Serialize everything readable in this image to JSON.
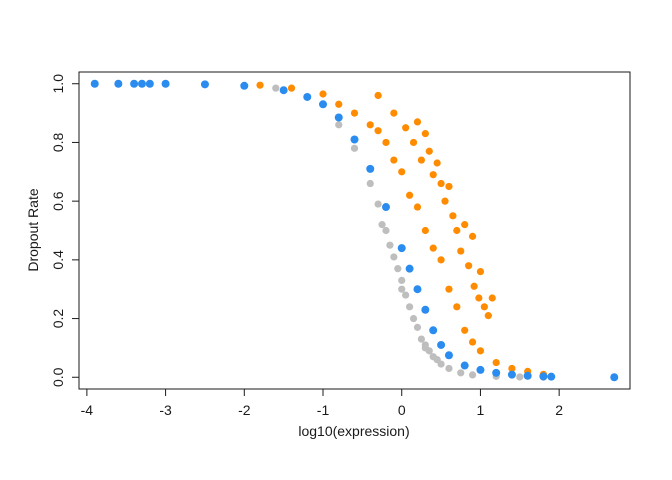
{
  "chart_data": {
    "type": "scatter",
    "title": "",
    "xlabel": "log10(expression)",
    "ylabel": "Dropout Rate",
    "xlim": [
      -4.1,
      2.9
    ],
    "ylim": [
      -0.04,
      1.04
    ],
    "xticks": [
      "-4",
      "-3",
      "-2",
      "-1",
      "0",
      "1",
      "2"
    ],
    "yticks": [
      "0.0",
      "0.2",
      "0.4",
      "0.6",
      "0.8",
      "1.0"
    ],
    "grid": false,
    "legend": "none",
    "series": [
      {
        "role": "points-below-fit",
        "color": "#bebebe",
        "points": [
          [
            -1.6,
            0.985
          ],
          [
            -1.2,
            0.955
          ],
          [
            -0.8,
            0.86
          ],
          [
            -0.6,
            0.78
          ],
          [
            -0.4,
            0.66
          ],
          [
            -0.3,
            0.59
          ],
          [
            -0.2,
            0.5
          ],
          [
            -0.1,
            0.41
          ],
          [
            0.0,
            0.33
          ],
          [
            0.1,
            0.24
          ],
          [
            0.2,
            0.17
          ],
          [
            0.3,
            0.11
          ],
          [
            0.4,
            0.07
          ],
          [
            0.5,
            0.045
          ],
          [
            0.6,
            0.03
          ],
          [
            0.75,
            0.015
          ],
          [
            0.9,
            0.008
          ],
          [
            1.2,
            0.003
          ],
          [
            1.5,
            0.001
          ],
          [
            1.8,
            0.0
          ],
          [
            -0.25,
            0.52
          ],
          [
            0.05,
            0.28
          ],
          [
            0.35,
            0.09
          ],
          [
            0.15,
            0.2
          ],
          [
            -0.05,
            0.37
          ],
          [
            0.45,
            0.06
          ],
          [
            0.25,
            0.13
          ],
          [
            -0.15,
            0.45
          ],
          [
            0.0,
            0.3
          ],
          [
            0.3,
            0.1
          ]
        ]
      },
      {
        "role": "points-above-fit",
        "color": "#ff8c00",
        "points": [
          [
            -1.8,
            0.995
          ],
          [
            -1.4,
            0.985
          ],
          [
            -1.0,
            0.965
          ],
          [
            -0.8,
            0.93
          ],
          [
            -0.6,
            0.9
          ],
          [
            -0.4,
            0.86
          ],
          [
            -0.3,
            0.84
          ],
          [
            -0.2,
            0.8
          ],
          [
            -0.1,
            0.74
          ],
          [
            0.0,
            0.7
          ],
          [
            0.1,
            0.62
          ],
          [
            0.2,
            0.58
          ],
          [
            0.3,
            0.5
          ],
          [
            0.4,
            0.44
          ],
          [
            0.5,
            0.4
          ],
          [
            0.6,
            0.3
          ],
          [
            0.7,
            0.24
          ],
          [
            0.8,
            0.16
          ],
          [
            0.9,
            0.12
          ],
          [
            1.0,
            0.09
          ],
          [
            1.2,
            0.05
          ],
          [
            1.4,
            0.03
          ],
          [
            1.6,
            0.02
          ],
          [
            1.8,
            0.01
          ],
          [
            -0.3,
            0.96
          ],
          [
            -0.1,
            0.9
          ],
          [
            0.2,
            0.87
          ],
          [
            0.3,
            0.83
          ],
          [
            0.35,
            0.77
          ],
          [
            0.45,
            0.73
          ],
          [
            0.5,
            0.66
          ],
          [
            0.55,
            0.6
          ],
          [
            0.65,
            0.55
          ],
          [
            0.7,
            0.5
          ],
          [
            0.75,
            0.43
          ],
          [
            0.85,
            0.38
          ],
          [
            0.92,
            0.31
          ],
          [
            0.98,
            0.27
          ],
          [
            1.05,
            0.24
          ],
          [
            1.15,
            0.27
          ],
          [
            0.9,
            0.48
          ],
          [
            0.8,
            0.52
          ],
          [
            1.0,
            0.36
          ],
          [
            1.1,
            0.21
          ],
          [
            0.6,
            0.65
          ],
          [
            0.4,
            0.69
          ],
          [
            0.25,
            0.74
          ],
          [
            0.15,
            0.8
          ],
          [
            0.05,
            0.85
          ]
        ]
      },
      {
        "role": "fit-curve",
        "color": "#2b8cf0",
        "points": [
          [
            -3.9,
            1.0
          ],
          [
            -3.6,
            1.0
          ],
          [
            -3.4,
            1.0
          ],
          [
            -3.3,
            1.0
          ],
          [
            -3.2,
            1.0
          ],
          [
            -3.0,
            1.0
          ],
          [
            -2.5,
            0.998
          ],
          [
            -2.0,
            0.993
          ],
          [
            -1.5,
            0.978
          ],
          [
            -1.2,
            0.955
          ],
          [
            -1.0,
            0.93
          ],
          [
            -0.8,
            0.885
          ],
          [
            -0.6,
            0.81
          ],
          [
            -0.4,
            0.71
          ],
          [
            -0.2,
            0.58
          ],
          [
            0.0,
            0.44
          ],
          [
            0.1,
            0.37
          ],
          [
            0.2,
            0.3
          ],
          [
            0.3,
            0.23
          ],
          [
            0.4,
            0.16
          ],
          [
            0.5,
            0.11
          ],
          [
            0.6,
            0.075
          ],
          [
            0.8,
            0.04
          ],
          [
            1.0,
            0.025
          ],
          [
            1.2,
            0.015
          ],
          [
            1.4,
            0.009
          ],
          [
            1.6,
            0.005
          ],
          [
            1.8,
            0.003
          ],
          [
            1.9,
            0.002
          ],
          [
            2.7,
            0.0
          ]
        ]
      }
    ]
  }
}
